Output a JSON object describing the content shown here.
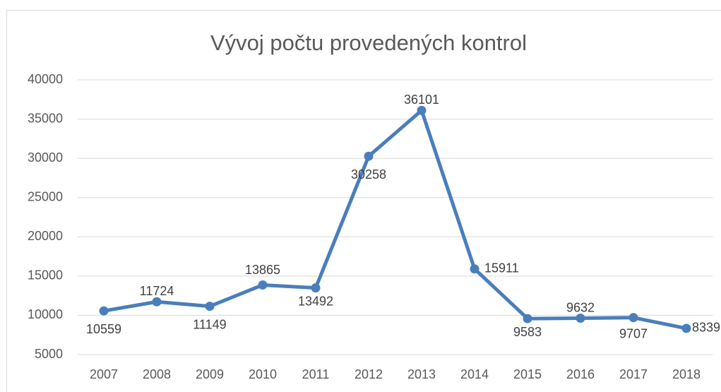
{
  "chart_data": {
    "type": "line",
    "title": "Vývoj počtu provedených kontrol",
    "categories": [
      "2007",
      "2008",
      "2009",
      "2010",
      "2011",
      "2012",
      "2013",
      "2014",
      "2015",
      "2016",
      "2017",
      "2018"
    ],
    "values": [
      10559,
      11724,
      11149,
      13865,
      13492,
      30258,
      36101,
      15911,
      9583,
      9632,
      9707,
      8339
    ],
    "color": "#4a7ebb",
    "ylim": [
      5000,
      40000
    ],
    "yticks": [
      5000,
      10000,
      15000,
      20000,
      25000,
      30000,
      35000,
      40000
    ],
    "grid": true
  }
}
